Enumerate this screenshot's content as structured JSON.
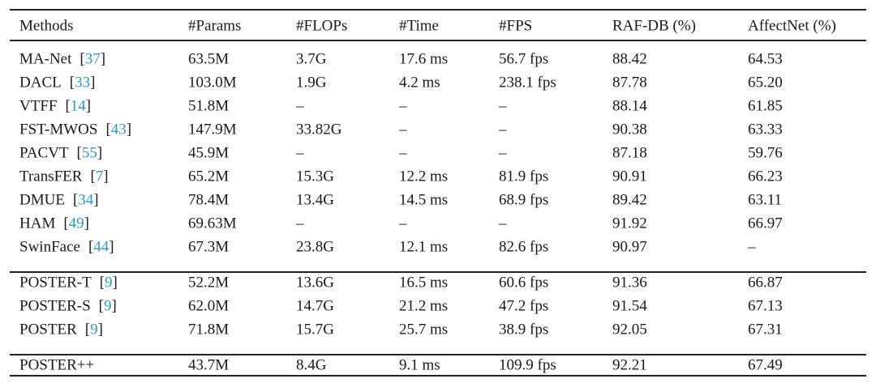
{
  "table": {
    "header": [
      "Methods",
      "#Params",
      "#FLOPs",
      "#Time",
      "#FPS",
      "RAF-DB (%)",
      "AffectNet (%)"
    ],
    "groups": [
      [
        {
          "method": "MA-Net",
          "ref": "[37]",
          "cells": [
            "63.5M",
            "3.7G",
            "17.6 ms",
            "56.7 fps",
            "88.42",
            "64.53"
          ]
        },
        {
          "method": "DACL",
          "ref": "[33]",
          "cells": [
            "103.0M",
            "1.9G",
            "4.2 ms",
            "238.1 fps",
            "87.78",
            "65.20"
          ]
        },
        {
          "method": "VTFF",
          "ref": "[14]",
          "cells": [
            "51.8M",
            "–",
            "–",
            "–",
            "88.14",
            "61.85"
          ]
        },
        {
          "method": "FST-MWOS",
          "ref": "[43]",
          "cells": [
            "147.9M",
            "33.82G",
            "–",
            "–",
            "90.38",
            "63.33"
          ]
        },
        {
          "method": "PACVT",
          "ref": "[55]",
          "cells": [
            "45.9M",
            "–",
            "–",
            "–",
            "87.18",
            "59.76"
          ]
        },
        {
          "method": "TransFER",
          "ref": "[7]",
          "cells": [
            "65.2M",
            "15.3G",
            "12.2 ms",
            "81.9 fps",
            "90.91",
            "66.23"
          ]
        },
        {
          "method": "DMUE",
          "ref": "[34]",
          "cells": [
            "78.4M",
            "13.4G",
            "14.5 ms",
            "68.9 fps",
            "89.42",
            "63.11"
          ]
        },
        {
          "method": "HAM",
          "ref": "[49]",
          "cells": [
            "69.63M",
            "–",
            "–",
            "–",
            "91.92",
            "66.97"
          ]
        },
        {
          "method": "SwinFace",
          "ref": "[44]",
          "cells": [
            "67.3M",
            "23.8G",
            "12.1 ms",
            "82.6 fps",
            "90.97",
            "–"
          ]
        }
      ],
      [
        {
          "method": "POSTER-T",
          "ref": "[9]",
          "cells": [
            "52.2M",
            "13.6G",
            "16.5 ms",
            "60.6 fps",
            "91.36",
            "66.87"
          ]
        },
        {
          "method": "POSTER-S",
          "ref": "[9]",
          "cells": [
            "62.0M",
            "14.7G",
            "21.2 ms",
            "47.2 fps",
            "91.54",
            "67.13"
          ]
        },
        {
          "method": "POSTER",
          "ref": "[9]",
          "cells": [
            "71.8M",
            "15.7G",
            "25.7 ms",
            "38.9 fps",
            "92.05",
            "67.31"
          ]
        }
      ],
      [
        {
          "method": "POSTER++",
          "cells": [
            "43.7M",
            "8.4G",
            "9.1 ms",
            "109.9 fps",
            "92.21",
            "67.49"
          ]
        }
      ]
    ]
  }
}
